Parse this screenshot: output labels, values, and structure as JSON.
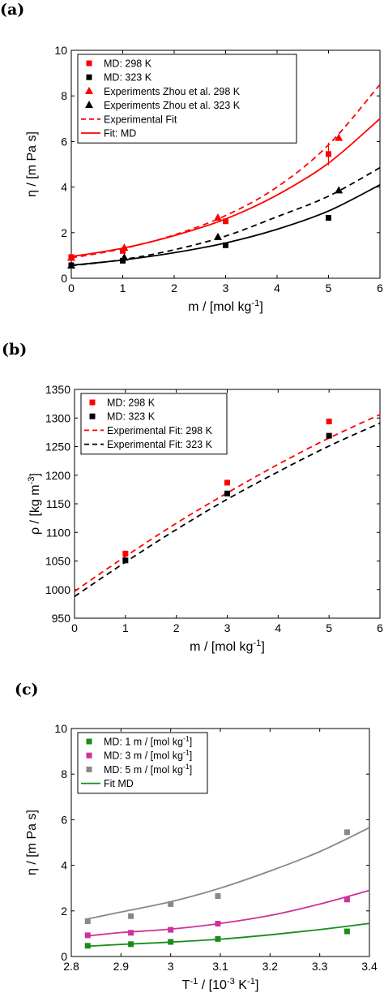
{
  "chart_data": [
    {
      "panel": "(a)",
      "type": "scatter",
      "xlabel": "m / [mol kg-1]",
      "ylabel": "η / [m Pa s]",
      "xlim": [
        0,
        6
      ],
      "ylim": [
        0,
        10
      ],
      "xticks": [
        0,
        1,
        2,
        3,
        4,
        5,
        6
      ],
      "yticks": [
        0,
        2,
        4,
        6,
        8,
        10
      ],
      "grid": false,
      "legend_position": "top-left",
      "series": [
        {
          "name": "MD: 298 K",
          "kind": "scatter",
          "marker": "square",
          "color": "#ff0000",
          "points": [
            [
              0,
              0.93
            ],
            [
              1,
              1.2
            ],
            [
              3,
              2.5
            ],
            [
              5,
              5.45
            ]
          ],
          "error_bars": [
            null,
            null,
            null,
            0.5
          ]
        },
        {
          "name": "MD: 323 K",
          "kind": "scatter",
          "marker": "square",
          "color": "#000000",
          "points": [
            [
              0,
              0.57
            ],
            [
              1,
              0.77
            ],
            [
              3,
              1.45
            ],
            [
              5,
              2.65
            ]
          ]
        },
        {
          "name": "Experiments Zhou et al. 298 K",
          "kind": "scatter",
          "marker": "triangle",
          "color": "#ff0000",
          "points": [
            [
              0,
              0.89
            ],
            [
              1.03,
              1.33
            ],
            [
              2.85,
              2.65
            ],
            [
              5.2,
              6.15
            ]
          ]
        },
        {
          "name": "Experiments Zhou et al. 323 K",
          "kind": "scatter",
          "marker": "triangle",
          "color": "#000000",
          "points": [
            [
              0,
              0.55
            ],
            [
              1.03,
              0.9
            ],
            [
              2.85,
              1.8
            ],
            [
              5.2,
              3.85
            ]
          ]
        },
        {
          "name": "Experimental Fit",
          "kind": "line",
          "dash": true,
          "color": "#ff0000",
          "points": [
            [
              0,
              0.89
            ],
            [
              1,
              1.3
            ],
            [
              2,
              1.9
            ],
            [
              3,
              2.75
            ],
            [
              4,
              4.0
            ],
            [
              5,
              5.85
            ],
            [
              6,
              8.5
            ]
          ]
        },
        {
          "name": "",
          "kind": "line",
          "dash": true,
          "color": "#000000",
          "points": [
            [
              0,
              0.55
            ],
            [
              1,
              0.82
            ],
            [
              2,
              1.25
            ],
            [
              3,
              1.85
            ],
            [
              4,
              2.7
            ],
            [
              5,
              3.6
            ],
            [
              6,
              4.85
            ]
          ]
        },
        {
          "name": "Fit: MD",
          "kind": "line",
          "dash": false,
          "color": "#ff0000",
          "points": [
            [
              0,
              0.95
            ],
            [
              1,
              1.32
            ],
            [
              2,
              1.87
            ],
            [
              3,
              2.6
            ],
            [
              4,
              3.65
            ],
            [
              5,
              5.05
            ],
            [
              6,
              7.0
            ]
          ]
        },
        {
          "name": "",
          "kind": "line",
          "dash": false,
          "color": "#000000",
          "points": [
            [
              0,
              0.57
            ],
            [
              1,
              0.8
            ],
            [
              2,
              1.12
            ],
            [
              3,
              1.55
            ],
            [
              4,
              2.15
            ],
            [
              5,
              2.95
            ],
            [
              6,
              4.1
            ]
          ]
        }
      ],
      "legend": [
        {
          "label": "MD: 298 K",
          "symbol": "square",
          "color": "#ff0000"
        },
        {
          "label": "MD: 323 K",
          "symbol": "square",
          "color": "#000000"
        },
        {
          "label": "Experiments Zhou et al. 298 K",
          "symbol": "triangle",
          "color": "#ff0000"
        },
        {
          "label": "Experiments Zhou et al. 323 K",
          "symbol": "triangle",
          "color": "#000000"
        },
        {
          "label": "Experimental Fit",
          "symbol": "dash",
          "color": "#ff0000"
        },
        {
          "label": "Fit: MD",
          "symbol": "line",
          "color": "#ff0000"
        }
      ]
    },
    {
      "panel": "(b)",
      "type": "scatter",
      "xlabel": "m / [mol kg-1]",
      "ylabel": "ρ / [kg m-3]",
      "xlim": [
        0,
        6
      ],
      "ylim": [
        950,
        1350
      ],
      "xticks": [
        0,
        1,
        2,
        3,
        4,
        5,
        6
      ],
      "yticks": [
        950,
        1000,
        1050,
        1100,
        1150,
        1200,
        1250,
        1300,
        1350
      ],
      "grid": false,
      "legend_position": "top-left",
      "series": [
        {
          "name": "MD: 298 K",
          "kind": "scatter",
          "marker": "square",
          "color": "#ff0000",
          "points": [
            [
              1,
              1063
            ],
            [
              3,
              1187
            ],
            [
              5,
              1294
            ]
          ]
        },
        {
          "name": "MD: 323 K",
          "kind": "scatter",
          "marker": "square",
          "color": "#000000",
          "points": [
            [
              1,
              1051
            ],
            [
              3,
              1168
            ],
            [
              5,
              1269
            ]
          ]
        },
        {
          "name": "Experimental Fit: 298 K",
          "kind": "line",
          "dash": true,
          "color": "#ff0000",
          "points": [
            [
              0,
              997
            ],
            [
              1,
              1058
            ],
            [
              2,
              1116
            ],
            [
              3,
              1169
            ],
            [
              4,
              1219
            ],
            [
              5,
              1265
            ],
            [
              6,
              1306
            ]
          ]
        },
        {
          "name": "Experimental Fit: 323 K",
          "kind": "line",
          "dash": true,
          "color": "#000000",
          "points": [
            [
              0,
              988
            ],
            [
              1,
              1048
            ],
            [
              2,
              1105
            ],
            [
              3,
              1158
            ],
            [
              4,
              1206
            ],
            [
              5,
              1251
            ],
            [
              6,
              1291
            ]
          ]
        }
      ],
      "legend": [
        {
          "label": "MD: 298 K",
          "symbol": "square",
          "color": "#ff0000"
        },
        {
          "label": "MD: 323 K",
          "symbol": "square",
          "color": "#000000"
        },
        {
          "label": "Experimental Fit: 298 K",
          "symbol": "dash",
          "color": "#ff0000"
        },
        {
          "label": "Experimental Fit: 323 K",
          "symbol": "dash",
          "color": "#000000"
        }
      ]
    },
    {
      "panel": "(c)",
      "type": "scatter",
      "xlabel": "T-1 / [10-3 K-1]",
      "ylabel": "η / [m Pa s]",
      "xlim": [
        2.8,
        3.4
      ],
      "ylim": [
        0,
        10
      ],
      "xticks": [
        2.8,
        2.9,
        3.0,
        3.1,
        3.2,
        3.3,
        3.4
      ],
      "xtick_labels": [
        "2.8",
        "2.9",
        "3",
        "3.1",
        "3.2",
        "3.3",
        "3.4"
      ],
      "yticks": [
        0,
        2,
        4,
        6,
        8,
        10
      ],
      "grid": false,
      "legend_position": "top-left",
      "series": [
        {
          "name": "MD: 1 m / [mol kg-1]",
          "kind": "scatter",
          "marker": "square",
          "color": "#1a8c1a",
          "points": [
            [
              2.833,
              0.47
            ],
            [
              2.92,
              0.54
            ],
            [
              3.0,
              0.64
            ],
            [
              3.095,
              0.77
            ],
            [
              3.355,
              1.1
            ]
          ]
        },
        {
          "name": "MD: 3 m / [mol kg-1]",
          "kind": "scatter",
          "marker": "square",
          "color": "#cc3399",
          "points": [
            [
              2.833,
              0.93
            ],
            [
              2.92,
              1.04
            ],
            [
              3.0,
              1.17
            ],
            [
              3.095,
              1.44
            ],
            [
              3.355,
              2.5
            ]
          ]
        },
        {
          "name": "MD: 5 m / [mol kg-1]",
          "kind": "scatter",
          "marker": "square",
          "color": "#888888",
          "points": [
            [
              2.833,
              1.55
            ],
            [
              2.92,
              1.77
            ],
            [
              3.0,
              2.3
            ],
            [
              3.095,
              2.65
            ],
            [
              3.355,
              5.45
            ]
          ]
        },
        {
          "name": "Fit MD",
          "kind": "line",
          "dash": false,
          "color": "#1a8c1a",
          "points": [
            [
              2.833,
              0.45
            ],
            [
              2.9,
              0.53
            ],
            [
              3.0,
              0.63
            ],
            [
              3.1,
              0.76
            ],
            [
              3.2,
              0.95
            ],
            [
              3.3,
              1.18
            ],
            [
              3.4,
              1.45
            ]
          ]
        },
        {
          "name": "",
          "kind": "line",
          "dash": false,
          "color": "#cc3399",
          "points": [
            [
              2.833,
              0.9
            ],
            [
              2.9,
              1.05
            ],
            [
              3.0,
              1.2
            ],
            [
              3.1,
              1.45
            ],
            [
              3.2,
              1.8
            ],
            [
              3.3,
              2.3
            ],
            [
              3.4,
              2.9
            ]
          ]
        },
        {
          "name": "",
          "kind": "line",
          "dash": false,
          "color": "#888888",
          "points": [
            [
              2.833,
              1.65
            ],
            [
              2.9,
              1.95
            ],
            [
              3.0,
              2.4
            ],
            [
              3.1,
              3.0
            ],
            [
              3.2,
              3.75
            ],
            [
              3.3,
              4.6
            ],
            [
              3.4,
              5.65
            ]
          ]
        }
      ],
      "legend": [
        {
          "label": "MD: 1 m / [mol kg-1]",
          "symbol": "square",
          "color": "#1a8c1a"
        },
        {
          "label": "MD: 3 m / [mol kg-1]",
          "symbol": "square",
          "color": "#cc3399"
        },
        {
          "label": "MD: 5 m / [mol kg-1]",
          "symbol": "square",
          "color": "#888888"
        },
        {
          "label": "Fit MD",
          "symbol": "line",
          "color": "#1a8c1a"
        }
      ]
    }
  ]
}
